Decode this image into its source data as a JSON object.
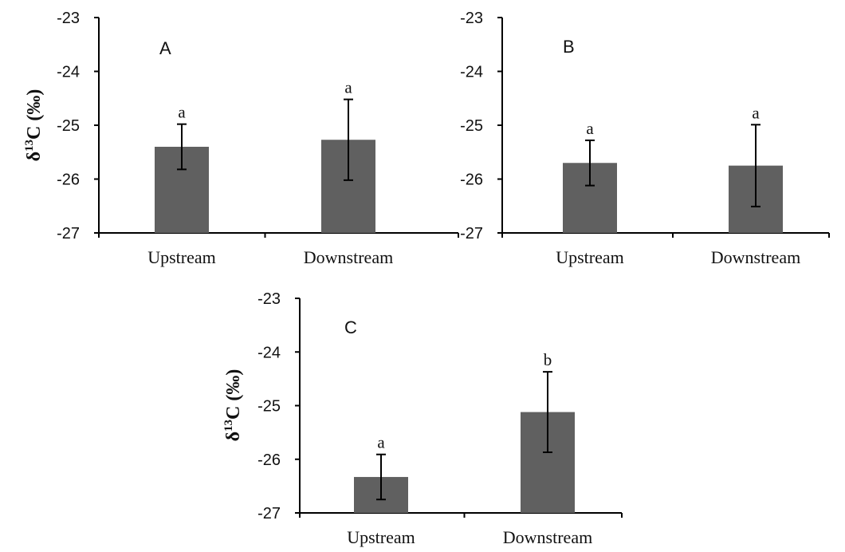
{
  "chart_data": [
    {
      "type": "bar",
      "panel": "A",
      "categories": [
        "Upstream",
        "Downstream"
      ],
      "values": [
        -25.4,
        -25.27
      ],
      "errors": [
        0.42,
        0.75
      ],
      "significance": [
        "a",
        "a"
      ],
      "ylabel": "δ13C (‰)",
      "ylim": [
        -27,
        -23
      ],
      "yticks": [
        -27,
        -26,
        -25,
        -24,
        -23
      ],
      "bar_color": "#606060",
      "grid": false
    },
    {
      "type": "bar",
      "panel": "B",
      "categories": [
        "Upstream",
        "Downstream"
      ],
      "values": [
        -25.7,
        -25.75
      ],
      "errors": [
        0.42,
        0.76
      ],
      "significance": [
        "a",
        "a"
      ],
      "ylabel": "",
      "ylim": [
        -27,
        -23
      ],
      "yticks": [
        -27,
        -26,
        -25,
        -24,
        -23
      ],
      "bar_color": "#606060",
      "grid": false
    },
    {
      "type": "bar",
      "panel": "C",
      "categories": [
        "Upstream",
        "Downstream"
      ],
      "values": [
        -26.33,
        -25.12
      ],
      "errors": [
        0.42,
        0.75
      ],
      "significance": [
        "a",
        "b"
      ],
      "ylabel": "δ13C (‰)",
      "ylim": [
        -27,
        -23
      ],
      "yticks": [
        -27,
        -26,
        -25,
        -24,
        -23
      ],
      "bar_color": "#606060",
      "grid": false
    }
  ]
}
